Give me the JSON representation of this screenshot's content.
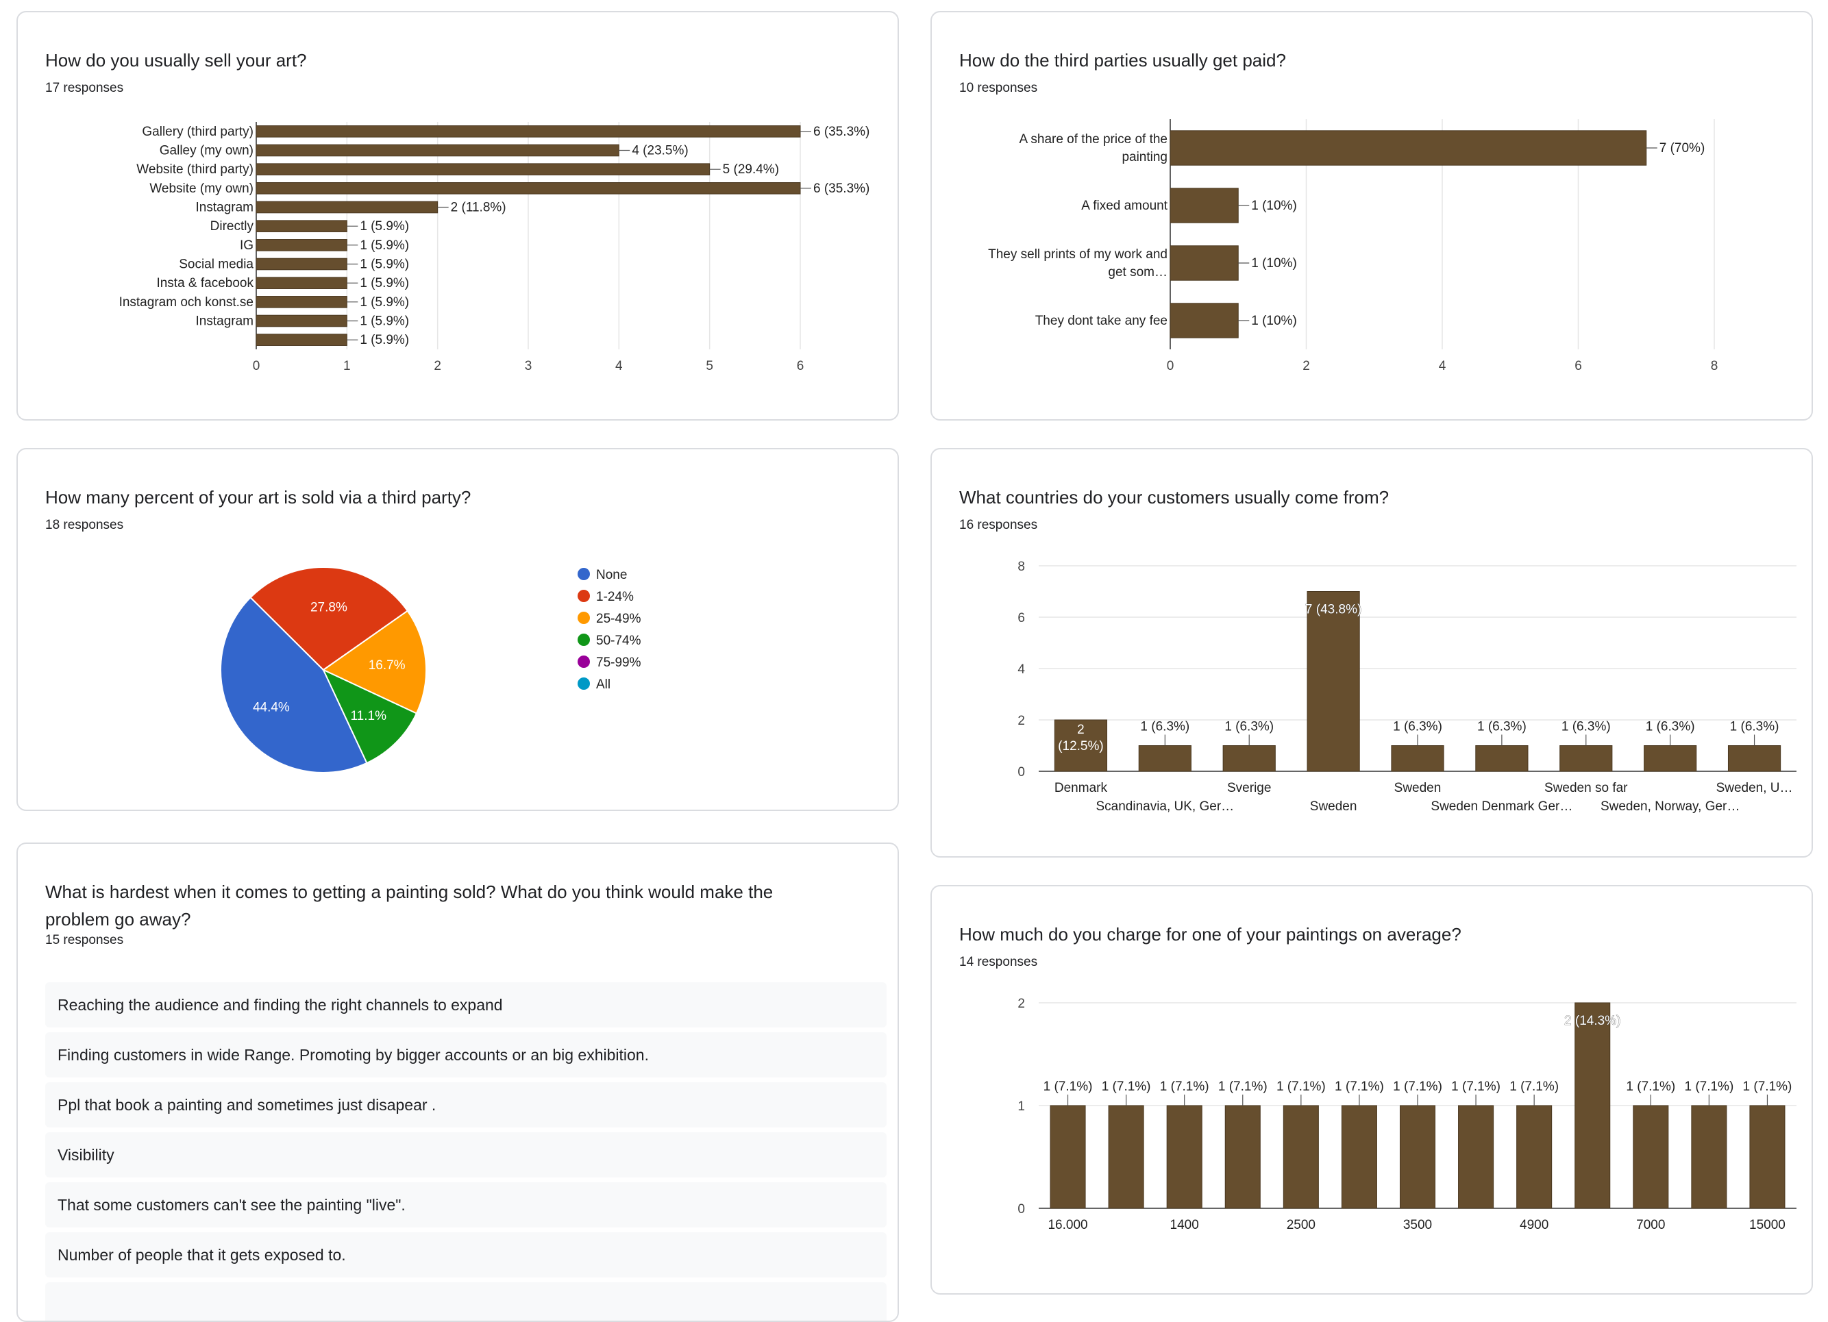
{
  "accent_color": "#664e2e",
  "cards": {
    "sell": {
      "title": "How do you usually sell your art?",
      "responses": "17 responses"
    },
    "paid": {
      "title": "How do the third parties usually get paid?",
      "responses": "10 responses"
    },
    "percent": {
      "title": "How many percent of your art is sold via a third party?",
      "responses": "18 responses"
    },
    "countries": {
      "title": "What countries do your customers usually come from?",
      "responses": "16 responses"
    },
    "hardest": {
      "title": "What is hardest when it comes to getting a painting sold? What do you think would make the problem go away?",
      "responses": "15 responses",
      "answers": [
        "Reaching the audience and finding the right channels to expand",
        "Finding customers in wide Range. Promoting by bigger accounts or an big exhibition.",
        "Ppl that book a painting and sometimes just disapear .",
        "Visibility",
        "That some customers can't see the painting \"live\".",
        "Number of people that it gets exposed to."
      ]
    },
    "charge": {
      "title": "How much do you charge for one of your paintings on average?",
      "responses": "14 responses"
    }
  },
  "chart_data": [
    {
      "id": "sell",
      "type": "bar",
      "orientation": "horizontal",
      "categories": [
        "Gallery (third party)",
        "Galley (my own)",
        "Website (third party)",
        "Website (my own)",
        "Instagram",
        "Directly",
        "IG",
        "Social media",
        "Insta & facebook",
        "Instagram och konst.se",
        "Instagram",
        ""
      ],
      "values": [
        6,
        4,
        5,
        6,
        2,
        1,
        1,
        1,
        1,
        1,
        1,
        1
      ],
      "data_labels": [
        "6 (35.3%)",
        "4 (23.5%)",
        "5 (29.4%)",
        "6 (35.3%)",
        "2 (11.8%)",
        "1 (5.9%)",
        "1 (5.9%)",
        "1 (5.9%)",
        "1 (5.9%)",
        "1 (5.9%)",
        "1 (5.9%)",
        "1 (5.9%)"
      ],
      "xlim": [
        0,
        6
      ],
      "ticks": [
        0,
        1,
        2,
        3,
        4,
        5,
        6
      ],
      "tick_labels": [
        "0",
        "1",
        "2",
        "3",
        "4",
        "5",
        "6"
      ],
      "grid": true
    },
    {
      "id": "paid",
      "type": "bar",
      "orientation": "horizontal",
      "categories": [
        [
          "A share of the price of the",
          "painting"
        ],
        [
          "A fixed amount"
        ],
        [
          "They sell prints of my work and",
          "get som…"
        ],
        [
          "They dont take any fee"
        ]
      ],
      "values": [
        7,
        1,
        1,
        1
      ],
      "data_labels": [
        "7 (70%)",
        "1 (10%)",
        "1 (10%)",
        "1 (10%)"
      ],
      "xlim": [
        0,
        8
      ],
      "ticks": [
        0,
        2,
        4,
        6,
        8
      ],
      "tick_labels": [
        "0",
        "2",
        "4",
        "6",
        "8"
      ],
      "grid": true
    },
    {
      "id": "percent",
      "type": "pie",
      "legend_position": "right",
      "slices": [
        {
          "label": "None",
          "value": 44.4,
          "text": "44.4%",
          "color": "#3366cc"
        },
        {
          "label": "1-24%",
          "value": 27.8,
          "text": "27.8%",
          "color": "#dc3912"
        },
        {
          "label": "25-49%",
          "value": 16.7,
          "text": "16.7%",
          "color": "#ff9900"
        },
        {
          "label": "50-74%",
          "value": 11.1,
          "text": "11.1%",
          "color": "#109618"
        },
        {
          "label": "75-99%",
          "value": 0,
          "text": "",
          "color": "#990099"
        },
        {
          "label": "All",
          "value": 0,
          "text": "",
          "color": "#0099c6"
        }
      ]
    },
    {
      "id": "countries",
      "type": "bar",
      "orientation": "vertical",
      "categories": [
        "Denmark",
        "Scandinavia, UK, Ger…",
        "Sverige",
        "Sweden",
        "Sweden",
        "Sweden Denmark Ger…",
        "Sweden so far",
        "Sweden, Norway, Ger…",
        "Sweden, U…"
      ],
      "values": [
        2,
        1,
        1,
        7,
        1,
        1,
        1,
        1,
        1
      ],
      "data_labels": [
        [
          "2",
          "(12.5%)"
        ],
        [
          "1 (6.3%)"
        ],
        [
          "1 (6.3%)"
        ],
        [
          "7 (43.8%)"
        ],
        [
          "1 (6.3%)"
        ],
        [
          "1 (6.3%)"
        ],
        [
          "1 (6.3%)"
        ],
        [
          "1 (6.3%)"
        ],
        [
          "1 (6.3%)"
        ]
      ],
      "label_rows": [
        0,
        1,
        0,
        1,
        0,
        1,
        0,
        1,
        0
      ],
      "ylim": [
        0,
        8
      ],
      "ticks": [
        0,
        2,
        4,
        6,
        8
      ],
      "tick_labels": [
        "0",
        "2",
        "4",
        "6",
        "8"
      ],
      "grid": true
    },
    {
      "id": "charge",
      "type": "bar",
      "orientation": "vertical",
      "categories": [
        "16.000",
        "",
        "1400",
        "",
        "2500",
        "",
        "3500",
        "",
        "4900",
        "",
        "7000",
        "",
        "15000"
      ],
      "values": [
        1,
        1,
        1,
        1,
        1,
        1,
        1,
        1,
        1,
        2,
        1,
        1,
        1
      ],
      "data_labels": [
        [
          "1 (7.1%)"
        ],
        [
          "1 (7.1%)"
        ],
        [
          "1 (7.1%)"
        ],
        [
          "1 (7.1%)"
        ],
        [
          "1 (7.1%)"
        ],
        [
          "1 (7.1%)"
        ],
        [
          "1 (7.1%)"
        ],
        [
          "1 (7.1%)"
        ],
        [
          "1 (7.1%)"
        ],
        [
          "2 (14.3%)"
        ],
        [
          "1 (7.1%)"
        ],
        [
          "1 (7.1%)"
        ],
        [
          "1 (7.1%)"
        ]
      ],
      "ylim": [
        0,
        2
      ],
      "ticks": [
        0,
        1,
        2
      ],
      "tick_labels": [
        "0",
        "1",
        "2"
      ],
      "grid": true
    }
  ]
}
